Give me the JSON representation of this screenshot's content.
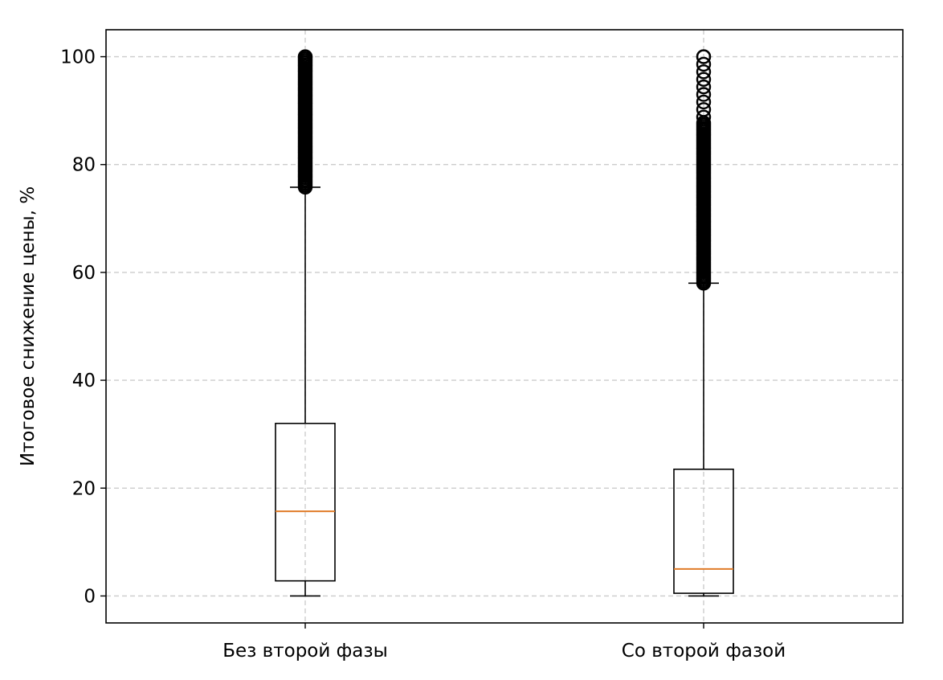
{
  "chart_data": {
    "type": "boxplot",
    "title": "",
    "xlabel": "",
    "ylabel": "Итоговое снижение цены, %",
    "ylim": [
      -5,
      105
    ],
    "yticks": [
      0,
      20,
      40,
      60,
      80,
      100
    ],
    "grid": true,
    "categories": [
      "Без второй фазы",
      "Со второй фазой"
    ],
    "boxes": [
      {
        "label": "Без второй фазы",
        "whisker_low": 0,
        "q1": 2.8,
        "median": 15.7,
        "q3": 32,
        "whisker_high": 75.8,
        "outliers_range": [
          75.8,
          100
        ]
      },
      {
        "label": "Со второй фазой",
        "whisker_low": 0,
        "q1": 0.5,
        "median": 5,
        "q3": 23.5,
        "whisker_high": 58,
        "outliers_range": [
          58,
          100
        ]
      }
    ],
    "colors": {
      "box": "#000000",
      "median": "#E07B28",
      "grid": "#CCCCCC"
    }
  }
}
